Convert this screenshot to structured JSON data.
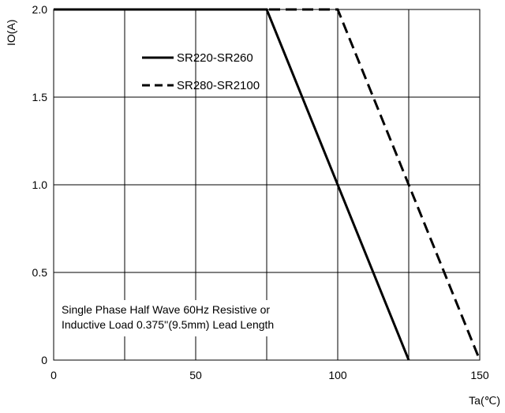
{
  "chart_data": {
    "type": "line",
    "xlabel": "Ta(℃)",
    "ylabel": "IO(A)",
    "xlim": [
      0,
      150
    ],
    "ylim": [
      0,
      2.0
    ],
    "xticks": [
      0,
      50,
      100,
      150
    ],
    "yticks": [
      0,
      0.5,
      1.0,
      1.5,
      2.0
    ],
    "xtick_labels": [
      "0",
      "50",
      "100",
      "150"
    ],
    "ytick_labels": [
      "0",
      "0.5",
      "1.0",
      "1.5",
      "2.0"
    ],
    "grid": true,
    "x_gridlines": [
      0,
      25,
      50,
      75,
      100,
      125,
      150
    ],
    "legend_position": "top-center",
    "series": [
      {
        "name": "SR220-SR260",
        "style": "solid",
        "color": "#000000",
        "x": [
          0,
          75,
          125
        ],
        "y": [
          2.0,
          2.0,
          0
        ]
      },
      {
        "name": "SR280-SR2100",
        "style": "dashed",
        "color": "#000000",
        "x": [
          0,
          100,
          150
        ],
        "y": [
          2.0,
          2.0,
          0
        ]
      }
    ],
    "annotation": {
      "line1": "Single Phase Half Wave 60Hz Resistive or",
      "line2": "Inductive Load 0.375''(9.5mm) Lead Length"
    }
  }
}
